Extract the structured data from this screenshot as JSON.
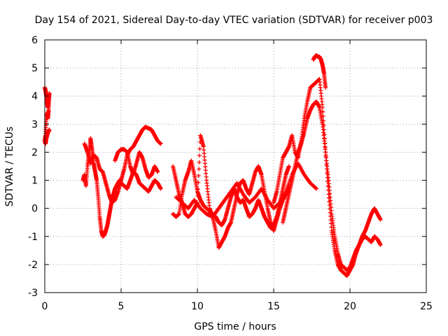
{
  "chart_data": {
    "type": "scatter",
    "title": "Day 154 of 2021, Sidereal Day-to-day VTEC variation (SDTVAR) for receiver p003",
    "xlabel": "GPS time / hours",
    "ylabel": "SDTVAR / TECUs",
    "xlim": [
      0,
      25
    ],
    "ylim": [
      -3,
      6
    ],
    "xticks": [
      0,
      5,
      10,
      15,
      20,
      25
    ],
    "yticks": [
      -3,
      -2,
      -1,
      0,
      1,
      2,
      3,
      4,
      5,
      6
    ],
    "grid": true,
    "marker": "+",
    "color": "#ff0000",
    "series": [
      {
        "name": "SDTVAR",
        "x": [
          0.0,
          0.05,
          0.1,
          0.15,
          0.2,
          0.25,
          0.3,
          0.25,
          0.2,
          0.15,
          0.1,
          0.05,
          0.0,
          0.05,
          0.1,
          0.15,
          0.2,
          0.25,
          0.3
        ],
        "y": [
          4.3,
          4.2,
          4.0,
          3.8,
          3.6,
          3.9,
          4.1,
          3.5,
          3.2,
          3.4,
          3.3,
          2.6,
          2.4,
          2.3,
          2.5,
          2.6,
          2.7,
          2.75,
          2.8
        ]
      },
      {
        "name": "SDTVAR",
        "x": [
          2.5,
          2.6,
          2.7,
          2.8,
          2.9,
          3.0,
          3.1,
          3.2,
          3.3,
          3.4,
          3.5,
          3.6,
          3.7,
          3.8,
          3.9,
          4.0,
          4.1,
          4.2,
          4.3,
          4.4,
          4.5,
          4.6,
          4.7,
          4.8,
          4.9,
          5.0,
          5.2,
          5.4,
          5.6,
          5.8,
          6.0,
          6.2,
          6.4,
          6.6,
          6.8,
          7.0,
          7.2,
          7.4,
          7.6
        ],
        "y": [
          1.0,
          1.2,
          0.8,
          1.5,
          2.0,
          2.5,
          2.1,
          1.6,
          1.3,
          1.0,
          0.4,
          -0.3,
          -0.8,
          -1.0,
          -0.95,
          -0.8,
          -0.6,
          -0.3,
          0.0,
          0.3,
          0.5,
          0.7,
          0.8,
          0.9,
          1.0,
          0.9,
          0.8,
          0.7,
          1.0,
          1.3,
          1.2,
          0.9,
          0.8,
          0.7,
          0.6,
          0.8,
          1.0,
          0.9,
          0.7
        ]
      },
      {
        "name": "SDTVAR",
        "x": [
          2.6,
          2.8,
          3.0,
          3.2,
          3.4,
          3.6,
          3.8,
          4.0,
          4.2,
          4.4,
          4.6,
          4.8,
          5.0,
          5.2,
          5.4,
          5.6,
          5.8,
          6.0,
          6.2,
          6.4,
          6.6,
          6.8,
          7.0,
          7.2,
          7.4,
          7.6
        ],
        "y": [
          2.3,
          2.0,
          1.6,
          1.9,
          1.8,
          1.4,
          1.3,
          0.9,
          0.5,
          0.2,
          0.3,
          0.6,
          1.0,
          1.4,
          1.9,
          2.1,
          2.2,
          2.4,
          2.6,
          2.8,
          2.9,
          2.85,
          2.8,
          2.6,
          2.4,
          2.3
        ]
      },
      {
        "name": "SDTVAR",
        "x": [
          4.6,
          4.8,
          5.0,
          5.2,
          5.4,
          5.6,
          5.8,
          6.0,
          6.2,
          6.4,
          6.6,
          6.8,
          7.0,
          7.2,
          7.4
        ],
        "y": [
          1.7,
          2.0,
          2.1,
          2.1,
          2.0,
          1.5,
          1.2,
          1.6,
          2.0,
          1.8,
          1.4,
          1.1,
          1.2,
          1.5,
          1.3
        ]
      },
      {
        "name": "SDTVAR",
        "x": [
          8.4,
          8.6,
          8.8,
          9.0,
          9.2,
          9.4,
          9.6,
          9.8,
          10.0,
          10.2,
          10.4,
          10.6,
          10.8,
          11.0,
          11.2,
          11.4,
          11.6,
          11.8,
          12.0,
          12.2,
          12.4,
          12.6,
          12.8,
          13.0,
          13.2,
          13.4,
          13.6,
          13.8,
          14.0,
          14.2,
          14.4,
          14.6,
          14.8,
          15.0,
          15.2,
          15.4,
          15.6,
          15.8,
          16.0
        ],
        "y": [
          1.5,
          1.0,
          0.5,
          0.2,
          -0.2,
          -0.3,
          -0.2,
          0.0,
          0.2,
          2.6,
          2.2,
          1.0,
          0.0,
          -0.3,
          -0.8,
          -1.4,
          -1.2,
          -1.0,
          -0.7,
          -0.5,
          0.0,
          0.5,
          0.9,
          1.0,
          0.7,
          0.5,
          0.9,
          1.3,
          1.5,
          1.2,
          0.6,
          0.0,
          -0.5,
          -0.8,
          -0.4,
          0.0,
          0.3,
          0.5,
          0.8
        ]
      },
      {
        "name": "SDTVAR",
        "x": [
          8.4,
          8.6,
          8.8,
          9.0,
          9.2,
          9.4,
          9.6,
          9.8,
          10.0,
          10.2,
          10.4,
          10.6,
          10.8,
          11.0,
          11.2,
          11.4,
          11.6,
          11.8,
          12.0,
          12.2,
          12.4,
          12.6,
          12.8,
          13.0,
          13.2,
          13.4,
          13.6,
          13.8,
          14.0,
          14.2,
          14.4,
          14.6,
          14.8,
          15.0,
          15.2,
          15.4,
          15.6,
          15.8,
          16.0
        ],
        "y": [
          -0.2,
          -0.3,
          -0.2,
          0.5,
          1.0,
          1.3,
          1.7,
          1.2,
          0.6,
          0.3,
          0.1,
          0.0,
          -0.1,
          -0.2,
          -0.3,
          -0.5,
          -0.6,
          -0.4,
          0.0,
          0.4,
          0.7,
          0.4,
          0.2,
          0.3,
          0.0,
          -0.3,
          -0.2,
          0.0,
          0.3,
          0.0,
          -0.3,
          -0.5,
          -0.7,
          -0.6,
          -0.3,
          0.2,
          0.7,
          1.2,
          1.5
        ]
      },
      {
        "name": "SDTVAR",
        "x": [
          8.6,
          9.0,
          9.4,
          9.8,
          10.2,
          10.6,
          11.0,
          11.4,
          11.8,
          12.2,
          12.6,
          13.0,
          13.4,
          13.8,
          14.2,
          14.6,
          15.0,
          15.4,
          15.8,
          16.2,
          16.6,
          17.0,
          17.4,
          17.8
        ],
        "y": [
          0.4,
          0.2,
          0.0,
          0.3,
          0.0,
          -0.2,
          -0.3,
          0.0,
          0.3,
          0.6,
          0.9,
          0.5,
          0.2,
          0.4,
          0.7,
          0.3,
          0.0,
          0.2,
          0.6,
          1.2,
          1.6,
          1.2,
          0.9,
          0.7
        ]
      },
      {
        "name": "SDTVAR",
        "x": [
          15.0,
          15.2,
          15.4,
          15.6,
          15.8,
          16.0,
          16.2,
          16.4,
          16.6,
          16.8,
          17.0,
          17.2,
          17.4,
          17.6,
          17.8,
          18.0,
          18.2,
          18.4,
          18.6,
          18.8,
          19.0,
          19.2,
          19.4,
          19.6,
          19.8,
          20.0,
          20.2,
          20.4,
          20.6,
          20.8,
          21.0,
          21.2,
          21.4,
          21.6,
          21.8,
          22.0
        ],
        "y": [
          0.2,
          0.6,
          1.2,
          1.8,
          2.0,
          2.2,
          2.6,
          2.0,
          1.8,
          2.4,
          3.2,
          3.8,
          4.3,
          4.4,
          4.5,
          4.6,
          3.6,
          2.0,
          0.5,
          -0.8,
          -1.5,
          -2.0,
          -2.2,
          -2.3,
          -2.4,
          -2.2,
          -2.0,
          -1.6,
          -1.3,
          -1.0,
          -0.8,
          -0.5,
          -0.2,
          0.0,
          -0.2,
          -0.4
        ]
      },
      {
        "name": "SDTVAR",
        "x": [
          15.6,
          15.8,
          16.0,
          16.2,
          16.4,
          16.6,
          16.8,
          17.0,
          17.2,
          17.4,
          17.6,
          17.8,
          18.0,
          18.2,
          18.4,
          18.6,
          18.8,
          19.0,
          19.2,
          19.4,
          19.6,
          19.8,
          20.0,
          20.2,
          20.4,
          20.6,
          20.8,
          21.0,
          21.2,
          21.4,
          21.6,
          21.8,
          22.0
        ],
        "y": [
          -0.5,
          0.0,
          0.5,
          1.0,
          1.5,
          2.0,
          2.3,
          2.7,
          3.2,
          3.5,
          3.7,
          3.8,
          3.6,
          3.0,
          2.0,
          1.0,
          -0.2,
          -1.0,
          -1.6,
          -2.0,
          -2.1,
          -2.2,
          -2.1,
          -1.8,
          -1.5,
          -1.3,
          -1.1,
          -1.0,
          -1.1,
          -1.2,
          -1.0,
          -1.1,
          -1.3
        ]
      },
      {
        "name": "SDTVAR",
        "x": [
          17.6,
          17.7,
          17.8,
          17.9,
          18.0,
          18.1,
          18.2,
          18.3,
          18.4
        ],
        "y": [
          5.3,
          5.4,
          5.45,
          5.4,
          5.4,
          5.3,
          5.1,
          4.8,
          4.3
        ]
      }
    ]
  }
}
